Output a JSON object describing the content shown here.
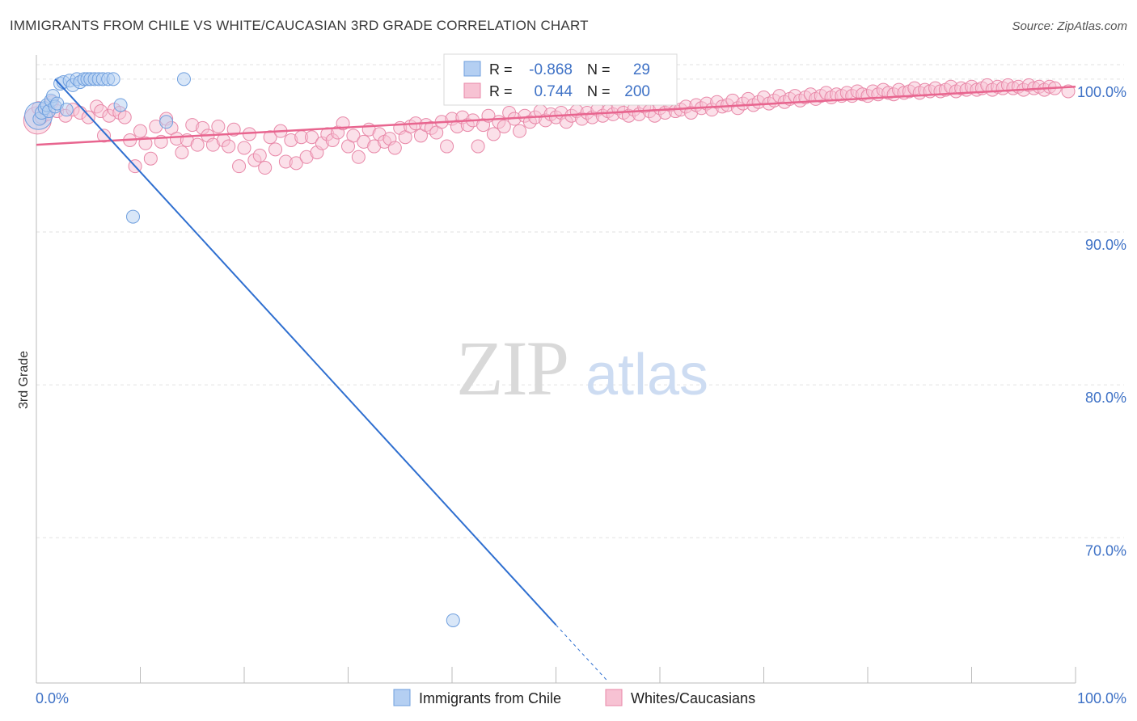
{
  "header": {
    "title": "IMMIGRANTS FROM CHILE VS WHITE/CAUCASIAN 3RD GRADE CORRELATION CHART",
    "source": "Source: ZipAtlas.com"
  },
  "watermark": {
    "zip": "ZIP",
    "atlas": "atlas"
  },
  "colors": {
    "blue": "#6f9fde",
    "blue_fill": "#b4cff2",
    "blue_line": "#2f6fd0",
    "pink": "#e888a8",
    "pink_fill": "#f7c2d3",
    "pink_line": "#e8658f",
    "tick_text": "#3f72c6",
    "grid": "#e2e2e2"
  },
  "chart_data": {
    "type": "scatter",
    "title": "IMMIGRANTS FROM CHILE VS WHITE/CAUCASIAN 3RD GRADE CORRELATION CHART",
    "xlabel": "",
    "ylabel": "3rd Grade",
    "xlim": [
      0,
      100
    ],
    "ylim": [
      60.5,
      102
    ],
    "x_tick_labels": [
      "0.0%",
      "100.0%"
    ],
    "y_ticks": [
      {
        "value": 100,
        "label": "100.0%"
      },
      {
        "value": 90,
        "label": "90.0%"
      },
      {
        "value": 80,
        "label": "80.0%"
      },
      {
        "value": 70,
        "label": "70.0%"
      }
    ],
    "grid": true,
    "legend_position": "bottom",
    "stats_box": [
      {
        "series": "Immigrants from Chile",
        "r_label": "R =",
        "r_value": "-0.868",
        "n_label": "N =",
        "n_value": "29"
      },
      {
        "series": "Whites/Caucasians",
        "r_label": "R =",
        "r_value": "0.744",
        "n_label": "N =",
        "n_value": "200"
      }
    ],
    "series": [
      {
        "name": "Immigrants from Chile",
        "color": "blue",
        "points": [
          [
            0.3,
            97.4
          ],
          [
            0.5,
            97.8
          ],
          [
            0.8,
            98.1
          ],
          [
            1.0,
            98.3
          ],
          [
            1.2,
            97.9
          ],
          [
            1.4,
            98.6
          ],
          [
            1.6,
            98.9
          ],
          [
            1.8,
            98.2
          ],
          [
            2.0,
            98.4
          ],
          [
            2.3,
            99.7
          ],
          [
            2.6,
            99.8
          ],
          [
            2.9,
            98.0
          ],
          [
            3.2,
            99.9
          ],
          [
            3.5,
            99.6
          ],
          [
            3.9,
            100.0
          ],
          [
            4.2,
            99.8
          ],
          [
            4.6,
            100.0
          ],
          [
            4.9,
            100.0
          ],
          [
            5.2,
            100.0
          ],
          [
            5.6,
            100.0
          ],
          [
            6.0,
            100.0
          ],
          [
            6.4,
            100.0
          ],
          [
            6.9,
            100.0
          ],
          [
            7.4,
            100.0
          ],
          [
            8.1,
            98.3
          ],
          [
            12.5,
            97.2
          ],
          [
            14.2,
            100.0
          ],
          [
            9.3,
            91.0
          ],
          [
            40.1,
            64.6
          ]
        ],
        "large_points": [
          [
            0.2,
            97.6
          ]
        ],
        "trend": {
          "x": [
            1.8,
            50.0
          ],
          "y": [
            100.0,
            64.3
          ],
          "dash_x": [
            50.0,
            55.0
          ],
          "dash_y": [
            64.3,
            60.6
          ]
        }
      },
      {
        "name": "Whites/Caucasians",
        "color": "pink",
        "points": [
          [
            0.2,
            98.1
          ],
          [
            0.5,
            97.5
          ],
          [
            1.0,
            97.7
          ],
          [
            1.5,
            98.5
          ],
          [
            2.0,
            97.9
          ],
          [
            2.8,
            97.6
          ],
          [
            3.5,
            98.0
          ],
          [
            4.2,
            97.8
          ],
          [
            5.0,
            97.5
          ],
          [
            5.8,
            98.2
          ],
          [
            6.2,
            97.9
          ],
          [
            6.5,
            96.3
          ],
          [
            7.0,
            97.6
          ],
          [
            7.5,
            98.0
          ],
          [
            8.0,
            97.8
          ],
          [
            8.5,
            97.5
          ],
          [
            9.0,
            96.0
          ],
          [
            9.5,
            94.3
          ],
          [
            10.0,
            96.6
          ],
          [
            10.5,
            95.8
          ],
          [
            11.0,
            94.8
          ],
          [
            11.5,
            96.9
          ],
          [
            12.0,
            95.9
          ],
          [
            12.5,
            97.4
          ],
          [
            13.0,
            96.8
          ],
          [
            13.5,
            96.1
          ],
          [
            14.0,
            95.2
          ],
          [
            14.5,
            96.0
          ],
          [
            15.0,
            97.0
          ],
          [
            15.5,
            95.7
          ],
          [
            16.0,
            96.8
          ],
          [
            16.5,
            96.3
          ],
          [
            17.0,
            95.7
          ],
          [
            17.5,
            96.9
          ],
          [
            18.0,
            96.0
          ],
          [
            18.5,
            95.6
          ],
          [
            19.0,
            96.7
          ],
          [
            19.5,
            94.3
          ],
          [
            20.0,
            95.5
          ],
          [
            20.5,
            96.4
          ],
          [
            21.0,
            94.7
          ],
          [
            21.5,
            95.0
          ],
          [
            22.0,
            94.2
          ],
          [
            22.5,
            96.2
          ],
          [
            23.0,
            95.4
          ],
          [
            23.5,
            96.6
          ],
          [
            24.0,
            94.6
          ],
          [
            24.5,
            96.0
          ],
          [
            25.0,
            94.5
          ],
          [
            25.5,
            96.2
          ],
          [
            26.0,
            94.9
          ],
          [
            26.5,
            96.2
          ],
          [
            27.0,
            95.2
          ],
          [
            27.5,
            95.8
          ],
          [
            28.0,
            96.4
          ],
          [
            28.5,
            96.0
          ],
          [
            29.0,
            96.5
          ],
          [
            29.5,
            97.1
          ],
          [
            30.0,
            95.6
          ],
          [
            30.5,
            96.3
          ],
          [
            31.0,
            94.9
          ],
          [
            31.5,
            95.9
          ],
          [
            32.0,
            96.7
          ],
          [
            32.5,
            95.6
          ],
          [
            33.0,
            96.4
          ],
          [
            33.5,
            95.9
          ],
          [
            34.0,
            96.1
          ],
          [
            34.5,
            95.5
          ],
          [
            35.0,
            96.8
          ],
          [
            35.5,
            96.2
          ],
          [
            36.0,
            96.9
          ],
          [
            36.5,
            97.1
          ],
          [
            37.0,
            96.3
          ],
          [
            37.5,
            97.0
          ],
          [
            38.0,
            96.8
          ],
          [
            38.5,
            96.5
          ],
          [
            39.0,
            97.2
          ],
          [
            39.5,
            95.6
          ],
          [
            40.0,
            97.4
          ],
          [
            40.5,
            96.9
          ],
          [
            41.0,
            97.5
          ],
          [
            41.5,
            97.0
          ],
          [
            42.0,
            97.3
          ],
          [
            42.5,
            95.6
          ],
          [
            43.0,
            97.0
          ],
          [
            43.5,
            97.6
          ],
          [
            44.0,
            96.4
          ],
          [
            44.5,
            97.2
          ],
          [
            45.0,
            96.9
          ],
          [
            45.5,
            97.8
          ],
          [
            46.0,
            97.4
          ],
          [
            46.5,
            96.6
          ],
          [
            47.0,
            97.6
          ],
          [
            47.5,
            97.2
          ],
          [
            48.0,
            97.5
          ],
          [
            48.5,
            97.9
          ],
          [
            49.0,
            97.3
          ],
          [
            49.5,
            97.7
          ],
          [
            50.0,
            97.5
          ],
          [
            50.5,
            97.8
          ],
          [
            51.0,
            97.2
          ],
          [
            51.5,
            97.6
          ],
          [
            52.0,
            97.9
          ],
          [
            52.5,
            97.4
          ],
          [
            53.0,
            97.8
          ],
          [
            53.5,
            97.5
          ],
          [
            54.0,
            98.0
          ],
          [
            54.5,
            97.6
          ],
          [
            55.0,
            97.9
          ],
          [
            55.5,
            97.7
          ],
          [
            56.0,
            98.1
          ],
          [
            56.5,
            97.8
          ],
          [
            57.0,
            97.6
          ],
          [
            57.5,
            98.0
          ],
          [
            58.0,
            97.7
          ],
          [
            58.5,
            98.2
          ],
          [
            59.0,
            97.9
          ],
          [
            59.5,
            97.6
          ],
          [
            60.0,
            98.1
          ],
          [
            60.5,
            97.8
          ],
          [
            61.0,
            98.3
          ],
          [
            61.5,
            97.9
          ],
          [
            62.0,
            98.0
          ],
          [
            62.5,
            98.2
          ],
          [
            63.0,
            97.8
          ],
          [
            63.5,
            98.3
          ],
          [
            64.0,
            98.1
          ],
          [
            64.5,
            98.4
          ],
          [
            65.0,
            98.0
          ],
          [
            65.5,
            98.5
          ],
          [
            66.0,
            98.2
          ],
          [
            66.5,
            98.3
          ],
          [
            67.0,
            98.6
          ],
          [
            67.5,
            98.1
          ],
          [
            68.0,
            98.4
          ],
          [
            68.5,
            98.7
          ],
          [
            69.0,
            98.3
          ],
          [
            69.5,
            98.5
          ],
          [
            70.0,
            98.8
          ],
          [
            70.5,
            98.4
          ],
          [
            71.0,
            98.6
          ],
          [
            71.5,
            98.9
          ],
          [
            72.0,
            98.5
          ],
          [
            72.5,
            98.7
          ],
          [
            73.0,
            98.9
          ],
          [
            73.5,
            98.6
          ],
          [
            74.0,
            98.8
          ],
          [
            74.5,
            99.0
          ],
          [
            75.0,
            98.7
          ],
          [
            75.5,
            98.9
          ],
          [
            76.0,
            99.1
          ],
          [
            76.5,
            98.8
          ],
          [
            77.0,
            99.0
          ],
          [
            77.5,
            98.9
          ],
          [
            78.0,
            99.1
          ],
          [
            78.5,
            98.9
          ],
          [
            79.0,
            99.2
          ],
          [
            79.5,
            99.0
          ],
          [
            80.0,
            98.9
          ],
          [
            80.5,
            99.2
          ],
          [
            81.0,
            99.0
          ],
          [
            81.5,
            99.3
          ],
          [
            82.0,
            99.1
          ],
          [
            82.5,
            99.0
          ],
          [
            83.0,
            99.3
          ],
          [
            83.5,
            99.1
          ],
          [
            84.0,
            99.2
          ],
          [
            84.5,
            99.4
          ],
          [
            85.0,
            99.1
          ],
          [
            85.5,
            99.3
          ],
          [
            86.0,
            99.2
          ],
          [
            86.5,
            99.4
          ],
          [
            87.0,
            99.2
          ],
          [
            87.5,
            99.3
          ],
          [
            88.0,
            99.5
          ],
          [
            88.5,
            99.2
          ],
          [
            89.0,
            99.4
          ],
          [
            89.5,
            99.3
          ],
          [
            90.0,
            99.5
          ],
          [
            90.5,
            99.3
          ],
          [
            91.0,
            99.4
          ],
          [
            91.5,
            99.6
          ],
          [
            92.0,
            99.3
          ],
          [
            92.5,
            99.5
          ],
          [
            93.0,
            99.4
          ],
          [
            93.5,
            99.6
          ],
          [
            94.0,
            99.4
          ],
          [
            94.5,
            99.5
          ],
          [
            95.0,
            99.3
          ],
          [
            95.5,
            99.6
          ],
          [
            96.0,
            99.4
          ],
          [
            96.5,
            99.5
          ],
          [
            97.0,
            99.3
          ],
          [
            97.5,
            99.5
          ],
          [
            98.0,
            99.4
          ],
          [
            99.3,
            99.2
          ]
        ],
        "large_points": [
          [
            0.1,
            97.3
          ]
        ],
        "trend": {
          "x": [
            0,
            100
          ],
          "y": [
            95.7,
            99.5
          ]
        }
      }
    ]
  }
}
